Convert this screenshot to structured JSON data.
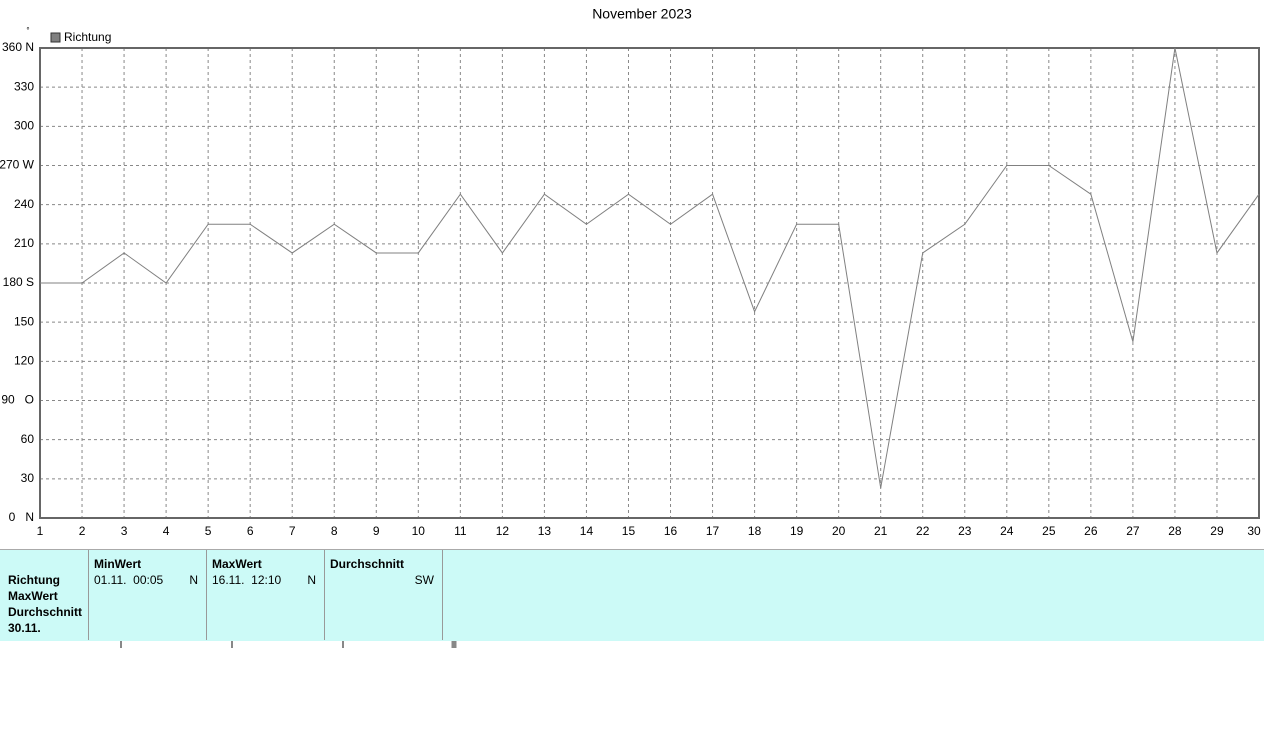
{
  "chart_data": {
    "type": "line",
    "title": "November 2023",
    "y_unit": "°",
    "x": [
      1,
      2,
      3,
      4,
      5,
      6,
      7,
      8,
      9,
      10,
      11,
      12,
      13,
      14,
      15,
      16,
      17,
      18,
      19,
      20,
      21,
      22,
      23,
      24,
      25,
      26,
      27,
      28,
      29,
      30
    ],
    "series": [
      {
        "name": "Richtung",
        "color": "#808080",
        "values": [
          180,
          180,
          203,
          180,
          225,
          225,
          203,
          225,
          203,
          203,
          248,
          203,
          248,
          225,
          248,
          225,
          248,
          158,
          225,
          225,
          23,
          203,
          225,
          270,
          270,
          248,
          135,
          360,
          203,
          248
        ]
      }
    ],
    "xlim": [
      1,
      30
    ],
    "xticks": [
      1,
      2,
      3,
      4,
      5,
      6,
      7,
      8,
      9,
      10,
      11,
      12,
      13,
      14,
      15,
      16,
      17,
      18,
      19,
      20,
      21,
      22,
      23,
      24,
      25,
      26,
      27,
      28,
      29,
      30
    ],
    "ylim": [
      0,
      360
    ],
    "yticks": [
      {
        "value": 0,
        "label": "0   N"
      },
      30,
      60,
      {
        "value": 90,
        "label": "90   O"
      },
      120,
      150,
      {
        "value": 180,
        "label": "180 S"
      },
      210,
      240,
      {
        "value": 270,
        "label": "270 W"
      },
      300,
      330,
      {
        "value": 360,
        "label": "360 N"
      }
    ],
    "grid": true,
    "legend": "top-left"
  },
  "summary": {
    "row_labels": [
      "Richtung",
      "MaxWert",
      "Durchschnitt",
      "30.11."
    ],
    "columns": [
      {
        "header": "MinWert",
        "date": "01.11.  00:05",
        "value": "N"
      },
      {
        "header": "MaxWert",
        "date": "16.11.  12:10",
        "value": "N"
      },
      {
        "header": "Durchschnitt",
        "value": "SW"
      }
    ]
  }
}
